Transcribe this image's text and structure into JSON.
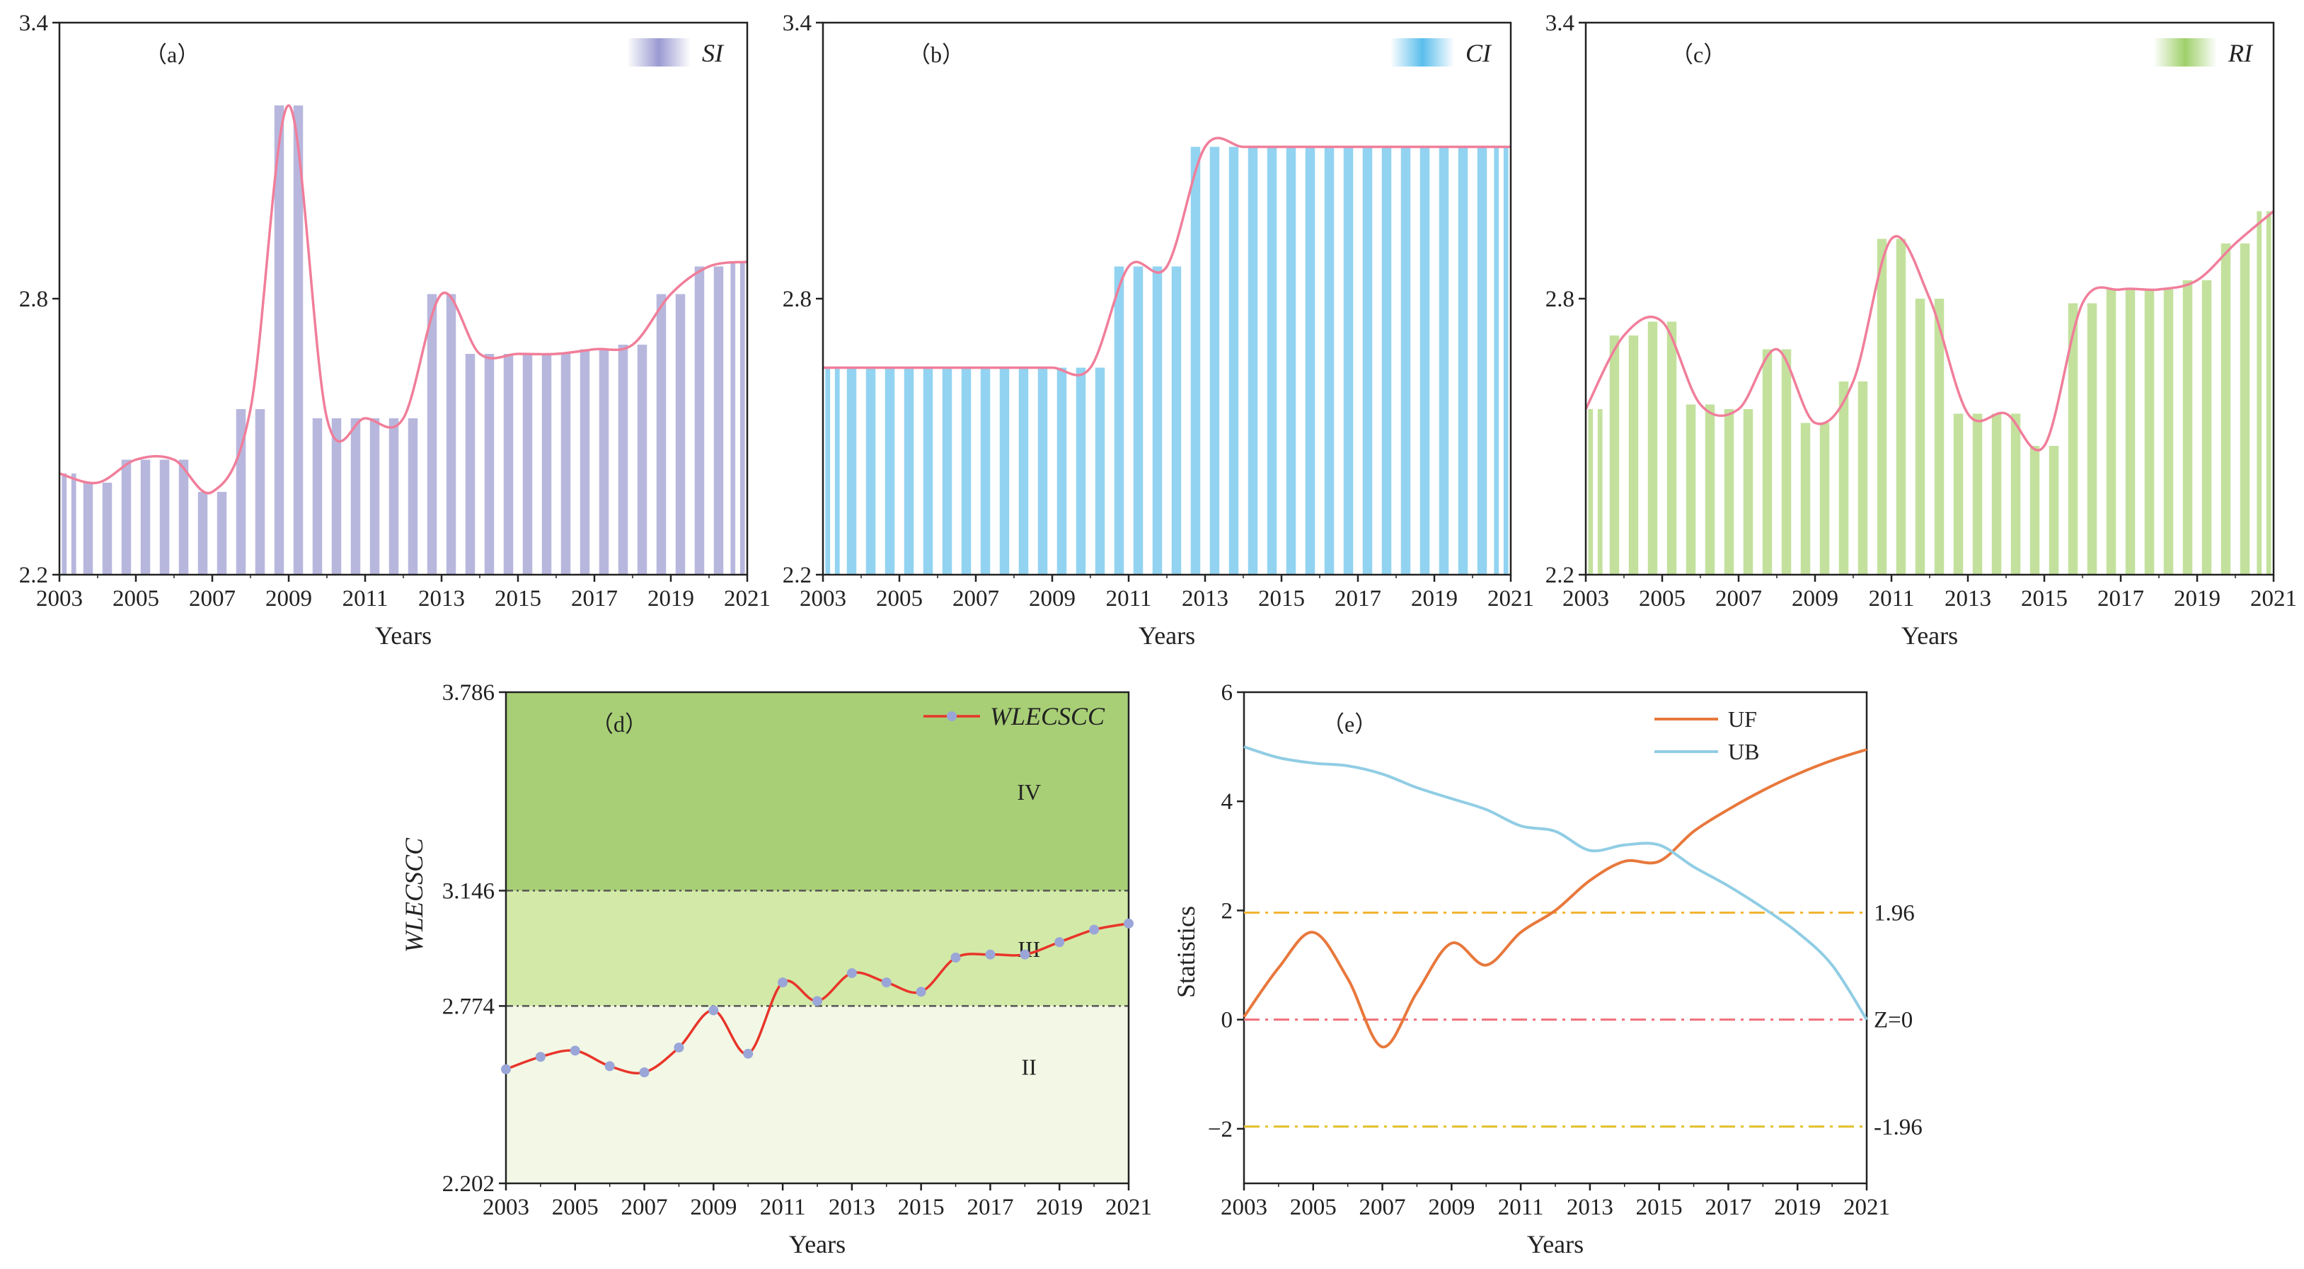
{
  "chart_data": [
    {
      "id": "a",
      "type": "bar",
      "panel_label": "（a）",
      "legend": "SI",
      "xlabel": "Years",
      "ylabel": "",
      "ylim": [
        2.2,
        3.4
      ],
      "yticks": [
        "2.2",
        "2.8",
        "3.4"
      ],
      "xticks": [
        "2003",
        "2005",
        "2007",
        "2009",
        "2011",
        "2013",
        "2015",
        "2017",
        "2019",
        "2021"
      ],
      "x": [
        2003,
        2004,
        2005,
        2006,
        2007,
        2008,
        2009,
        2010,
        2011,
        2012,
        2013,
        2014,
        2015,
        2016,
        2017,
        2018,
        2019,
        2020,
        2021
      ],
      "values": [
        2.42,
        2.4,
        2.45,
        2.45,
        2.38,
        2.56,
        3.22,
        2.54,
        2.54,
        2.54,
        2.81,
        2.68,
        2.68,
        2.68,
        2.69,
        2.7,
        2.81,
        2.87,
        2.88
      ],
      "bar_color": "#aaaad8",
      "line_color": "#f07e9a"
    },
    {
      "id": "b",
      "type": "bar",
      "panel_label": "（b）",
      "legend": "CI",
      "xlabel": "Years",
      "ylabel": "",
      "ylim": [
        2.2,
        3.4
      ],
      "yticks": [
        "2.2",
        "2.8",
        "3.4"
      ],
      "xticks": [
        "2003",
        "2005",
        "2007",
        "2009",
        "2011",
        "2013",
        "2015",
        "2017",
        "2019",
        "2021"
      ],
      "x": [
        2003,
        2004,
        2005,
        2006,
        2007,
        2008,
        2009,
        2010,
        2011,
        2012,
        2013,
        2014,
        2015,
        2016,
        2017,
        2018,
        2019,
        2020,
        2021
      ],
      "values": [
        2.65,
        2.65,
        2.65,
        2.65,
        2.65,
        2.65,
        2.65,
        2.65,
        2.87,
        2.87,
        3.13,
        3.13,
        3.13,
        3.13,
        3.13,
        3.13,
        3.13,
        3.13,
        3.13
      ],
      "bar_color": "#7fcbef",
      "line_color": "#f07e9a"
    },
    {
      "id": "c",
      "type": "bar",
      "panel_label": "（c）",
      "legend": "RI",
      "xlabel": "Years",
      "ylabel": "",
      "ylim": [
        2.2,
        3.4
      ],
      "yticks": [
        "2.2",
        "2.8",
        "3.4"
      ],
      "xticks": [
        "2003",
        "2005",
        "2007",
        "2009",
        "2011",
        "2013",
        "2015",
        "2017",
        "2019",
        "2021"
      ],
      "x": [
        2003,
        2004,
        2005,
        2006,
        2007,
        2008,
        2009,
        2010,
        2011,
        2012,
        2013,
        2014,
        2015,
        2016,
        2017,
        2018,
        2019,
        2020,
        2021
      ],
      "values": [
        2.56,
        2.72,
        2.75,
        2.57,
        2.56,
        2.69,
        2.53,
        2.62,
        2.93,
        2.8,
        2.55,
        2.55,
        2.48,
        2.79,
        2.82,
        2.82,
        2.84,
        2.92,
        2.99
      ],
      "bar_color": "#b9dc8c",
      "line_color": "#f07e9a"
    },
    {
      "id": "d",
      "type": "line",
      "panel_label": "（d）",
      "legend": "WLECSCC",
      "xlabel": "Years",
      "ylabel": "WLECSCC",
      "ylim": [
        2.202,
        3.786
      ],
      "yticks": [
        "2.202",
        "2.774",
        "3.146",
        "3.786"
      ],
      "xticks": [
        "2003",
        "2005",
        "2007",
        "2009",
        "2011",
        "2013",
        "2015",
        "2017",
        "2019",
        "2021"
      ],
      "thresholds": [
        2.774,
        3.146
      ],
      "zones": [
        {
          "label": "II",
          "from": 2.202,
          "to": 2.774,
          "color": "#f3f8e6"
        },
        {
          "label": "III",
          "from": 2.774,
          "to": 3.146,
          "color": "#d3e9a8"
        },
        {
          "label": "IV",
          "from": 3.146,
          "to": 3.786,
          "color": "#a8cf76"
        }
      ],
      "x": [
        2003,
        2004,
        2005,
        2006,
        2007,
        2008,
        2009,
        2010,
        2011,
        2012,
        2013,
        2014,
        2015,
        2016,
        2017,
        2018,
        2019,
        2020,
        2021
      ],
      "values": [
        2.57,
        2.61,
        2.63,
        2.58,
        2.56,
        2.64,
        2.76,
        2.62,
        2.85,
        2.79,
        2.88,
        2.85,
        2.82,
        2.93,
        2.94,
        2.94,
        2.98,
        3.02,
        3.04
      ],
      "line_color": "#e8352a",
      "marker_color": "#9aa6d8"
    },
    {
      "id": "e",
      "type": "line",
      "panel_label": "（e）",
      "xlabel": "Years",
      "ylabel": "Statistics",
      "ylim": [
        -3,
        6
      ],
      "yticks": [
        "−2",
        "0",
        "2",
        "4",
        "6"
      ],
      "ytick_values": [
        -2,
        0,
        2,
        4,
        6
      ],
      "xticks": [
        "2003",
        "2005",
        "2007",
        "2009",
        "2011",
        "2013",
        "2015",
        "2017",
        "2019",
        "2021"
      ],
      "reference_lines": [
        {
          "value": 1.96,
          "label": "1.96",
          "color": "#f2b431"
        },
        {
          "value": 0,
          "label": "Z=0",
          "color": "#f0707a"
        },
        {
          "value": -1.96,
          "label": "-1.96",
          "color": "#e2c02a"
        }
      ],
      "series": [
        {
          "name": "UF",
          "color": "#e8783c",
          "x": [
            2003,
            2004,
            2005,
            2006,
            2007,
            2008,
            2009,
            2010,
            2011,
            2012,
            2013,
            2014,
            2015,
            2016,
            2017,
            2018,
            2019,
            2020,
            2021
          ],
          "values": [
            0.05,
            0.95,
            1.6,
            0.75,
            -0.5,
            0.5,
            1.4,
            1.0,
            1.6,
            2.0,
            2.55,
            2.9,
            2.9,
            3.45,
            3.85,
            4.2,
            4.5,
            4.75,
            4.95
          ]
        },
        {
          "name": "UB",
          "color": "#90cde4",
          "x": [
            2003,
            2004,
            2005,
            2006,
            2007,
            2008,
            2009,
            2010,
            2011,
            2012,
            2013,
            2014,
            2015,
            2016,
            2017,
            2018,
            2019,
            2020,
            2021
          ],
          "values": [
            5.0,
            4.8,
            4.7,
            4.65,
            4.5,
            4.25,
            4.05,
            3.85,
            3.55,
            3.45,
            3.1,
            3.2,
            3.2,
            2.8,
            2.45,
            2.05,
            1.6,
            1.0,
            0.0
          ]
        }
      ]
    }
  ]
}
